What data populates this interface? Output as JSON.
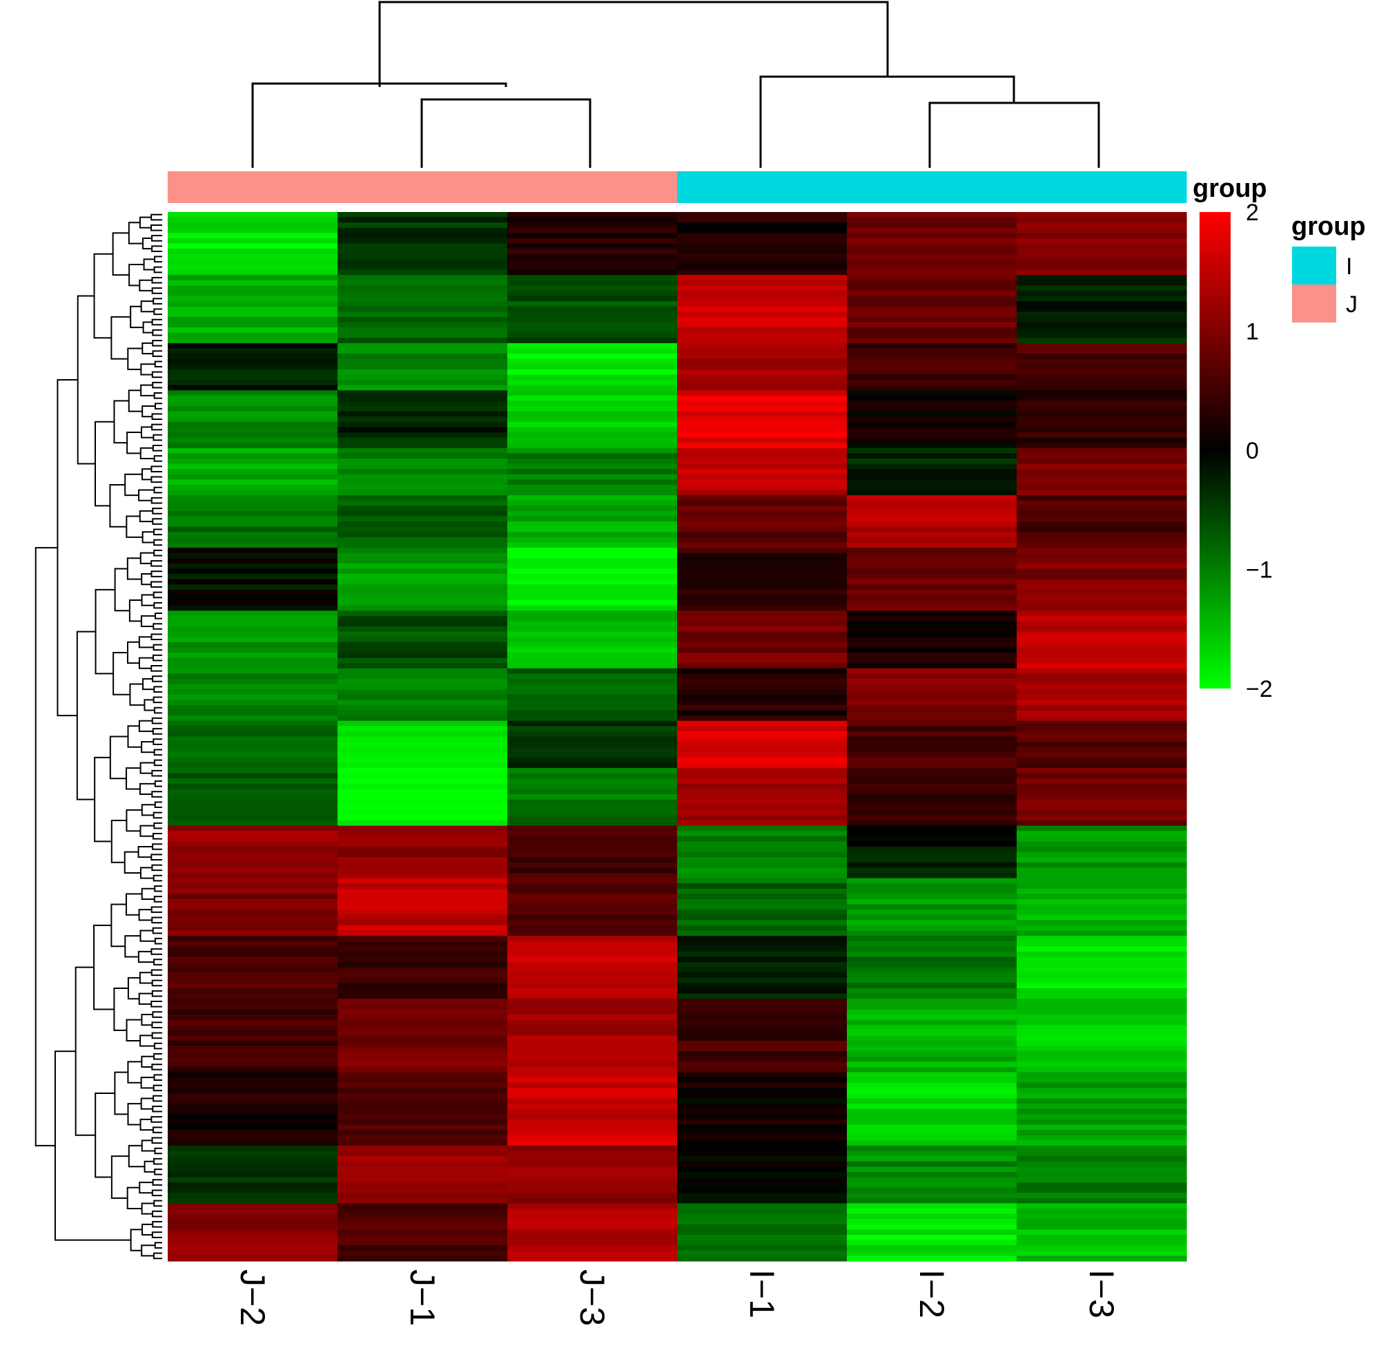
{
  "chart_data": {
    "type": "heatmap",
    "title": "",
    "columns": [
      "J−2",
      "J−1",
      "J−3",
      "I−1",
      "I−2",
      "I−3"
    ],
    "column_groups": [
      "J",
      "J",
      "J",
      "I",
      "I",
      "I"
    ],
    "color_scale": {
      "min": -2,
      "max": 2,
      "ticks": [
        2,
        1,
        0,
        -1,
        -2
      ],
      "tick_labels": [
        "2",
        "1",
        "0",
        "−1",
        "−2"
      ],
      "low_color": "#00ff00",
      "mid_color": "#000000",
      "high_color": "#ff0000"
    },
    "annotation": {
      "title": "group",
      "legend_title": "group",
      "levels": [
        {
          "name": "I",
          "color": "#00d8e0"
        },
        {
          "name": "J",
          "color": "#fa9289"
        }
      ]
    },
    "row_blocks": [
      {
        "rows": 12,
        "values": [
          -1.8,
          -0.4,
          0.3,
          0.2,
          0.9,
          1.1
        ]
      },
      {
        "rows": 13,
        "values": [
          -1.4,
          -0.8,
          -0.6,
          1.6,
          0.8,
          -0.3
        ]
      },
      {
        "rows": 9,
        "values": [
          -0.2,
          -1.1,
          -1.8,
          1.3,
          0.5,
          0.6
        ]
      },
      {
        "rows": 11,
        "values": [
          -1.1,
          -0.3,
          -1.6,
          1.8,
          0.1,
          0.4
        ]
      },
      {
        "rows": 9,
        "values": [
          -1.3,
          -1.0,
          -1.0,
          1.5,
          -0.3,
          0.9
        ]
      },
      {
        "rows": 10,
        "values": [
          -0.9,
          -0.7,
          -1.4,
          0.7,
          1.4,
          0.6
        ]
      },
      {
        "rows": 12,
        "values": [
          -0.1,
          -1.2,
          -1.9,
          0.4,
          0.8,
          1.0
        ]
      },
      {
        "rows": 11,
        "values": [
          -1.2,
          -0.6,
          -1.5,
          0.9,
          0.2,
          1.5
        ]
      },
      {
        "rows": 10,
        "values": [
          -1.0,
          -1.0,
          -0.7,
          0.3,
          1.0,
          1.3
        ]
      },
      {
        "rows": 9,
        "values": [
          -0.8,
          -1.8,
          -0.4,
          1.7,
          0.6,
          0.7
        ]
      },
      {
        "rows": 11,
        "values": [
          -0.7,
          -1.9,
          -0.9,
          1.3,
          0.4,
          0.9
        ]
      },
      {
        "rows": 10,
        "values": [
          1.2,
          1.1,
          0.5,
          -1.0,
          -0.2,
          -1.2
        ]
      },
      {
        "rows": 11,
        "values": [
          1.0,
          1.5,
          0.7,
          -0.8,
          -1.2,
          -1.4
        ]
      },
      {
        "rows": 12,
        "values": [
          0.6,
          0.4,
          1.5,
          -0.3,
          -0.9,
          -1.8
        ]
      },
      {
        "rows": 14,
        "values": [
          0.5,
          0.9,
          1.3,
          0.5,
          -1.4,
          -1.6
        ]
      },
      {
        "rows": 14,
        "values": [
          0.2,
          0.7,
          1.6,
          0.1,
          -1.7,
          -1.3
        ]
      },
      {
        "rows": 11,
        "values": [
          -0.3,
          1.2,
          1.2,
          0.0,
          -1.1,
          -1.0
        ]
      },
      {
        "rows": 11,
        "values": [
          1.1,
          0.6,
          1.4,
          -0.9,
          -1.8,
          -1.5
        ]
      }
    ]
  }
}
